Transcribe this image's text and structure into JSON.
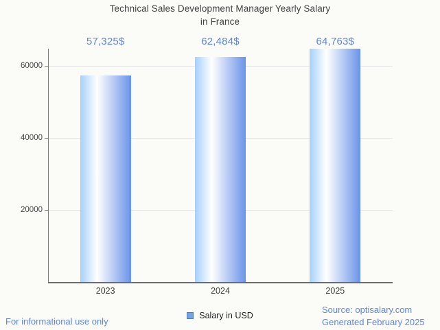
{
  "title": {
    "line1": "Technical Sales Development Manager Yearly Salary",
    "line2": "in France"
  },
  "chart_data": {
    "type": "bar",
    "title": "Technical Sales Development Manager Yearly Salary in France",
    "categories": [
      "2023",
      "2024",
      "2025"
    ],
    "values": [
      57325,
      62484,
      64763
    ],
    "value_labels": [
      "57,325$",
      "62,484$",
      "64,763$"
    ],
    "series": [
      {
        "name": "Salary in USD",
        "values": [
          57325,
          62484,
          64763
        ]
      }
    ],
    "xlabel": "",
    "ylabel": "",
    "yticks": [
      20000,
      40000,
      60000
    ],
    "ytick_labels": [
      "20000",
      "40000",
      "60000"
    ],
    "ylim": [
      0,
      65000
    ],
    "grid": true,
    "legend_position": "bottom"
  },
  "legend": {
    "label": "Salary in USD"
  },
  "footer": {
    "left": "For informational use only",
    "source": "Source: optisalary.com",
    "generated": "Generated February 2025"
  },
  "colors": {
    "accent_blue": "#5f86d7",
    "bar_gradient_left": "#a5d0fb",
    "bar_gradient_mid": "#ffffff",
    "bar_gradient_right": "#6b93e8",
    "legend_fill": "#73a3e2",
    "legend_border": "#4a79c4",
    "grid": "#e4e4e4",
    "axis": "#6b6b6b",
    "text_dark": "#424242",
    "background": "#fbfbf8"
  }
}
